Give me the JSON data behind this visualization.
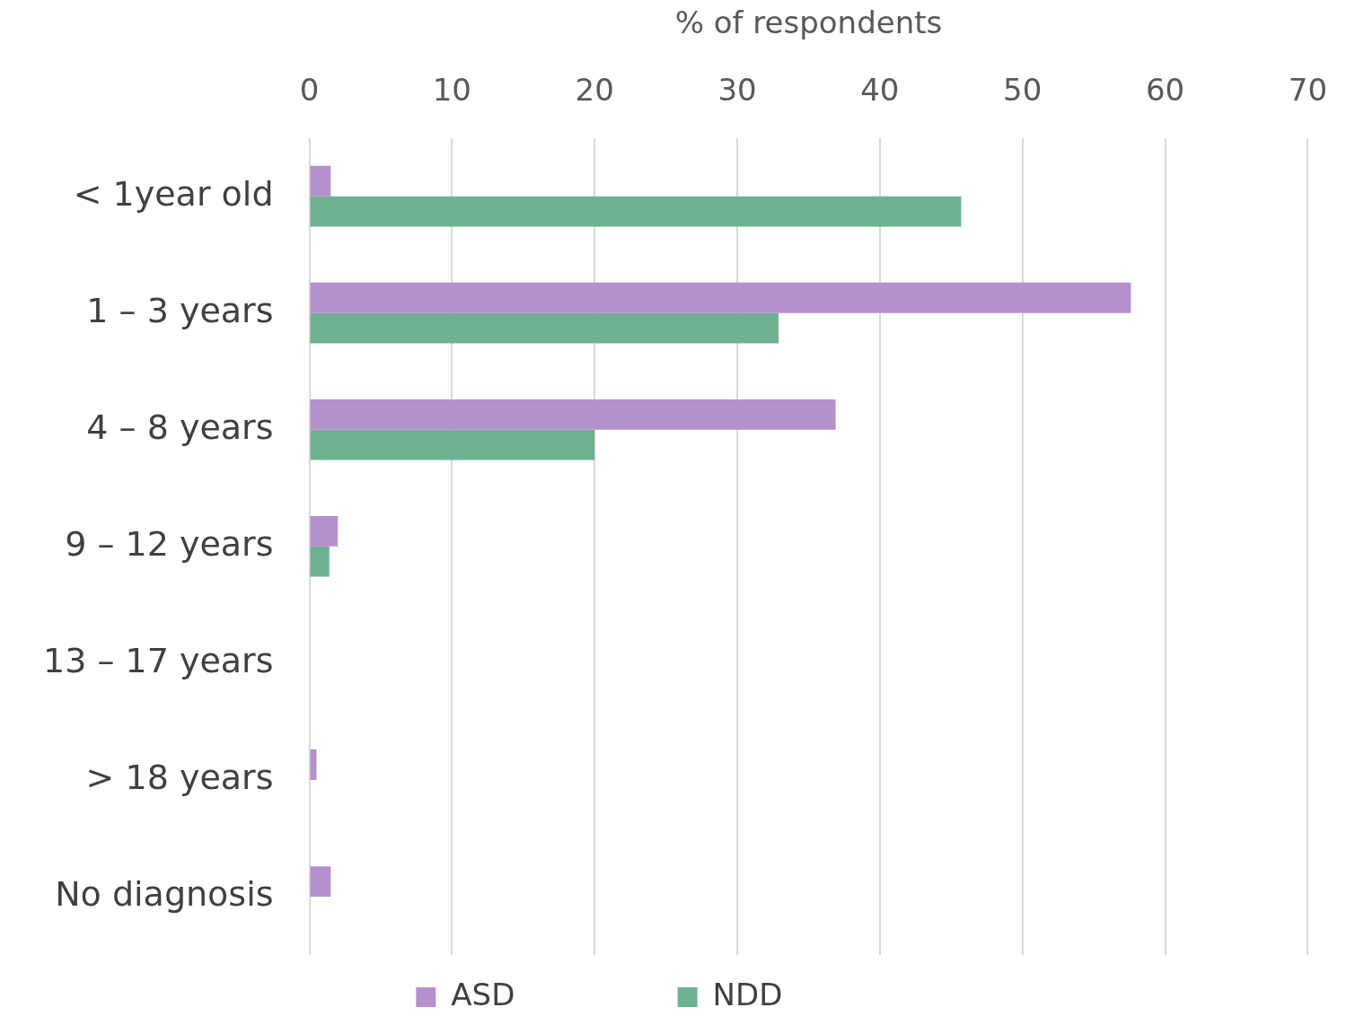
{
  "chart_data": {
    "type": "bar",
    "orientation": "horizontal",
    "xlabel": "% of respondents",
    "categories": [
      "< 1year old",
      "1 – 3 years",
      "4 – 8 years",
      "9 – 12 years",
      "13 – 17 years",
      "> 18 years",
      "No diagnosis"
    ],
    "series": [
      {
        "name": "ASD",
        "color": "#b591cb",
        "values": [
          1.5,
          57.6,
          36.9,
          2.0,
          0,
          0.5,
          1.5
        ]
      },
      {
        "name": "NDD",
        "color": "#6db192",
        "values": [
          45.7,
          32.9,
          20.0,
          1.4,
          0,
          0,
          0
        ]
      }
    ],
    "xlim": [
      0,
      70
    ],
    "xticks": [
      0,
      10,
      20,
      30,
      40,
      50,
      60,
      70
    ],
    "grid": "x",
    "legend": "bottom"
  }
}
